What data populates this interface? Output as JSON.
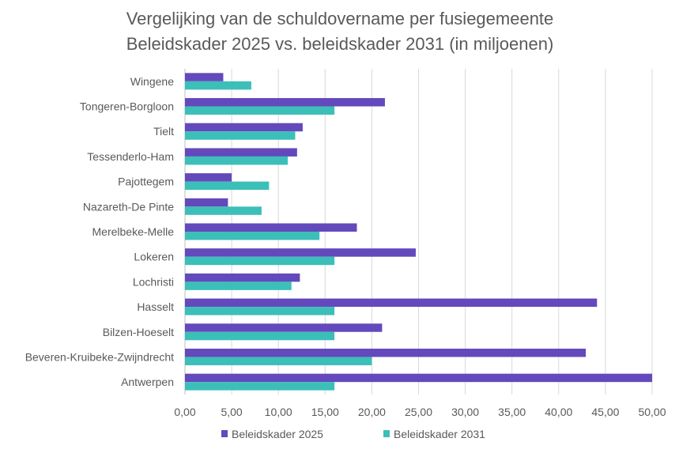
{
  "chart_data": {
    "type": "bar",
    "orientation": "horizontal",
    "title": [
      "Vergelijking van de schuldovername per fusiegemeente",
      "Beleidskader 2025 vs. beleidskader 2031 (in miljoenen)"
    ],
    "categories": [
      "Wingene",
      "Tongeren-Borgloon",
      "Tielt",
      "Tessenderlo-Ham",
      "Pajottegem",
      "Nazareth-De Pinte",
      "Merelbeke-Melle",
      "Lokeren",
      "Lochristi",
      "Hasselt",
      "Bilzen-Hoeselt",
      "Beveren-Kruibeke-Zwijndrecht",
      "Antwerpen"
    ],
    "series": [
      {
        "name": "Beleidskader 2025",
        "color": "#6349BC",
        "values": [
          4.1,
          21.4,
          12.6,
          12.0,
          5.0,
          4.6,
          18.4,
          24.7,
          12.3,
          44.1,
          21.1,
          42.9,
          50.0
        ]
      },
      {
        "name": "Beleidskader 2031",
        "color": "#3CBFB8",
        "values": [
          7.1,
          16.0,
          11.8,
          11.0,
          9.0,
          8.2,
          14.4,
          16.0,
          11.4,
          16.0,
          16.0,
          20.0,
          16.0
        ]
      }
    ],
    "xlim": [
      0,
      50
    ],
    "xticks": [
      "0,00",
      "5,00",
      "10,00",
      "15,00",
      "20,00",
      "25,00",
      "30,00",
      "35,00",
      "40,00",
      "45,00",
      "50,00"
    ],
    "xlabel": "",
    "ylabel": "",
    "grid": true,
    "legend": "bottom"
  }
}
